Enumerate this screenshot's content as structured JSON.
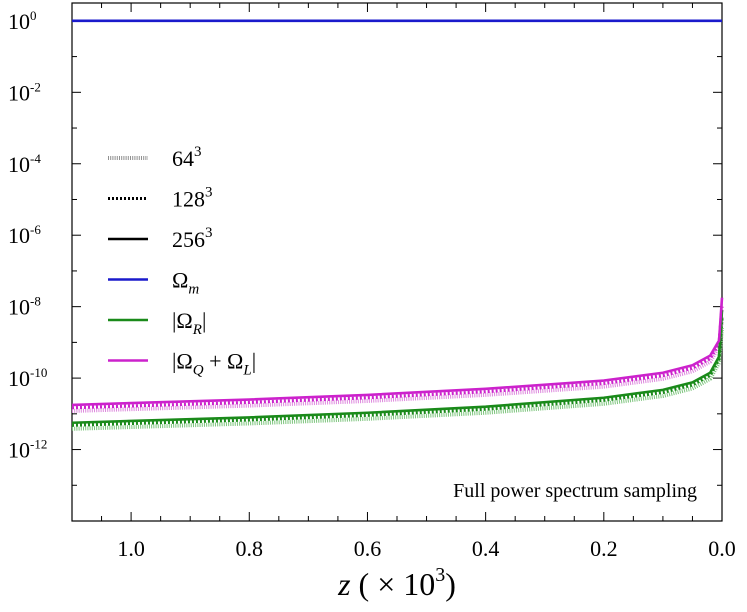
{
  "chart_data": {
    "type": "line",
    "xlabel": "z ( × 10³)",
    "ylabel": "",
    "xlim": [
      1.1,
      0.0
    ],
    "ylim_log10": [
      -14,
      0.5
    ],
    "yscale": "log",
    "x_ticks": [
      1.0,
      0.8,
      0.6,
      0.4,
      0.2,
      0.0
    ],
    "x_tick_labels": [
      "1.0",
      "0.8",
      "0.6",
      "0.4",
      "0.2",
      "0.0"
    ],
    "y_ticks_log10": [
      0,
      -2,
      -4,
      -6,
      -8,
      -10,
      -12
    ],
    "y_tick_labels": [
      {
        "base": "10",
        "exp": "0"
      },
      {
        "base": "10",
        "exp": "-2"
      },
      {
        "base": "10",
        "exp": "-4"
      },
      {
        "base": "10",
        "exp": "-6"
      },
      {
        "base": "10",
        "exp": "-8"
      },
      {
        "base": "10",
        "exp": "-10"
      },
      {
        "base": "10",
        "exp": "-12"
      }
    ],
    "annotation": "Full power spectrum sampling",
    "legend": [
      {
        "label": "64",
        "sup": "3",
        "sub": "",
        "suffix": "",
        "color": "#909090",
        "style": "hatched"
      },
      {
        "label": "128",
        "sup": "3",
        "sub": "",
        "suffix": "",
        "color": "#000000",
        "style": "dotted"
      },
      {
        "label": "256",
        "sup": "3",
        "sub": "",
        "suffix": "",
        "color": "#000000",
        "style": "solid"
      },
      {
        "label": "Ω",
        "sup": "",
        "sub": "m",
        "suffix": "",
        "color": "#1a1acc",
        "style": "solid"
      },
      {
        "label": "|Ω",
        "sup": "",
        "sub": "R",
        "suffix": "|",
        "color": "#1a8a1a",
        "style": "solid"
      },
      {
        "label": "|Ω",
        "sup": "",
        "sub": "Q",
        "suffix": " + Ω_L|",
        "color": "#cc22cc",
        "style": "solid"
      }
    ],
    "series": [
      {
        "name": "Ω_m",
        "color": "#1a1acc",
        "x": [
          1.1,
          0.8,
          0.5,
          0.2,
          0.0
        ],
        "log10_y": [
          0,
          0,
          0,
          0,
          0
        ]
      },
      {
        "name": "|Ω_R| (256³)",
        "color": "#1a8a1a",
        "style": "solid",
        "x": [
          1.1,
          1.0,
          0.8,
          0.6,
          0.4,
          0.2,
          0.1,
          0.05,
          0.02,
          0.005,
          0.0
        ],
        "log10_y": [
          -11.25,
          -11.2,
          -11.1,
          -10.97,
          -10.8,
          -10.55,
          -10.33,
          -10.12,
          -9.85,
          -9.4,
          -8.1
        ]
      },
      {
        "name": "|Ω_R| (128³)",
        "color": "#1a8a1a",
        "style": "dotted",
        "x": [
          1.1,
          1.0,
          0.8,
          0.6,
          0.4,
          0.2,
          0.1,
          0.05,
          0.02,
          0.005,
          0.0
        ],
        "log10_y": [
          -11.32,
          -11.27,
          -11.17,
          -11.04,
          -10.87,
          -10.62,
          -10.4,
          -10.19,
          -9.92,
          -9.47,
          -8.3
        ]
      },
      {
        "name": "|Ω_R| (64³)",
        "color": "#7cc47c",
        "style": "hatched",
        "x": [
          1.1,
          1.0,
          0.8,
          0.6,
          0.4,
          0.2,
          0.1,
          0.05,
          0.02,
          0.005,
          0.0
        ],
        "log10_y": [
          -11.42,
          -11.37,
          -11.27,
          -11.14,
          -10.97,
          -10.72,
          -10.5,
          -10.29,
          -10.02,
          -9.57,
          -8.6
        ]
      },
      {
        "name": "|Ω_Q + Ω_L| (256³)",
        "color": "#cc22cc",
        "style": "solid",
        "x": [
          1.1,
          1.0,
          0.8,
          0.6,
          0.4,
          0.2,
          0.1,
          0.05,
          0.02,
          0.005,
          0.0
        ],
        "log10_y": [
          -10.75,
          -10.7,
          -10.6,
          -10.47,
          -10.3,
          -10.07,
          -9.85,
          -9.64,
          -9.37,
          -8.95,
          -7.75
        ]
      },
      {
        "name": "|Ω_Q + Ω_L| (128³)",
        "color": "#cc22cc",
        "style": "dotted",
        "x": [
          1.1,
          1.0,
          0.8,
          0.6,
          0.4,
          0.2,
          0.1,
          0.05,
          0.02,
          0.005,
          0.0
        ],
        "log10_y": [
          -10.83,
          -10.78,
          -10.68,
          -10.55,
          -10.38,
          -10.15,
          -9.93,
          -9.72,
          -9.45,
          -9.03,
          -8.0
        ]
      },
      {
        "name": "|Ω_Q + Ω_L| (64³)",
        "color": "#dd88dd",
        "style": "hatched",
        "x": [
          1.1,
          1.0,
          0.8,
          0.6,
          0.4,
          0.2,
          0.1,
          0.05,
          0.02,
          0.005,
          0.0
        ],
        "log10_y": [
          -10.92,
          -10.87,
          -10.77,
          -10.64,
          -10.47,
          -10.24,
          -10.02,
          -9.81,
          -9.54,
          -9.12,
          -8.3
        ]
      }
    ]
  }
}
